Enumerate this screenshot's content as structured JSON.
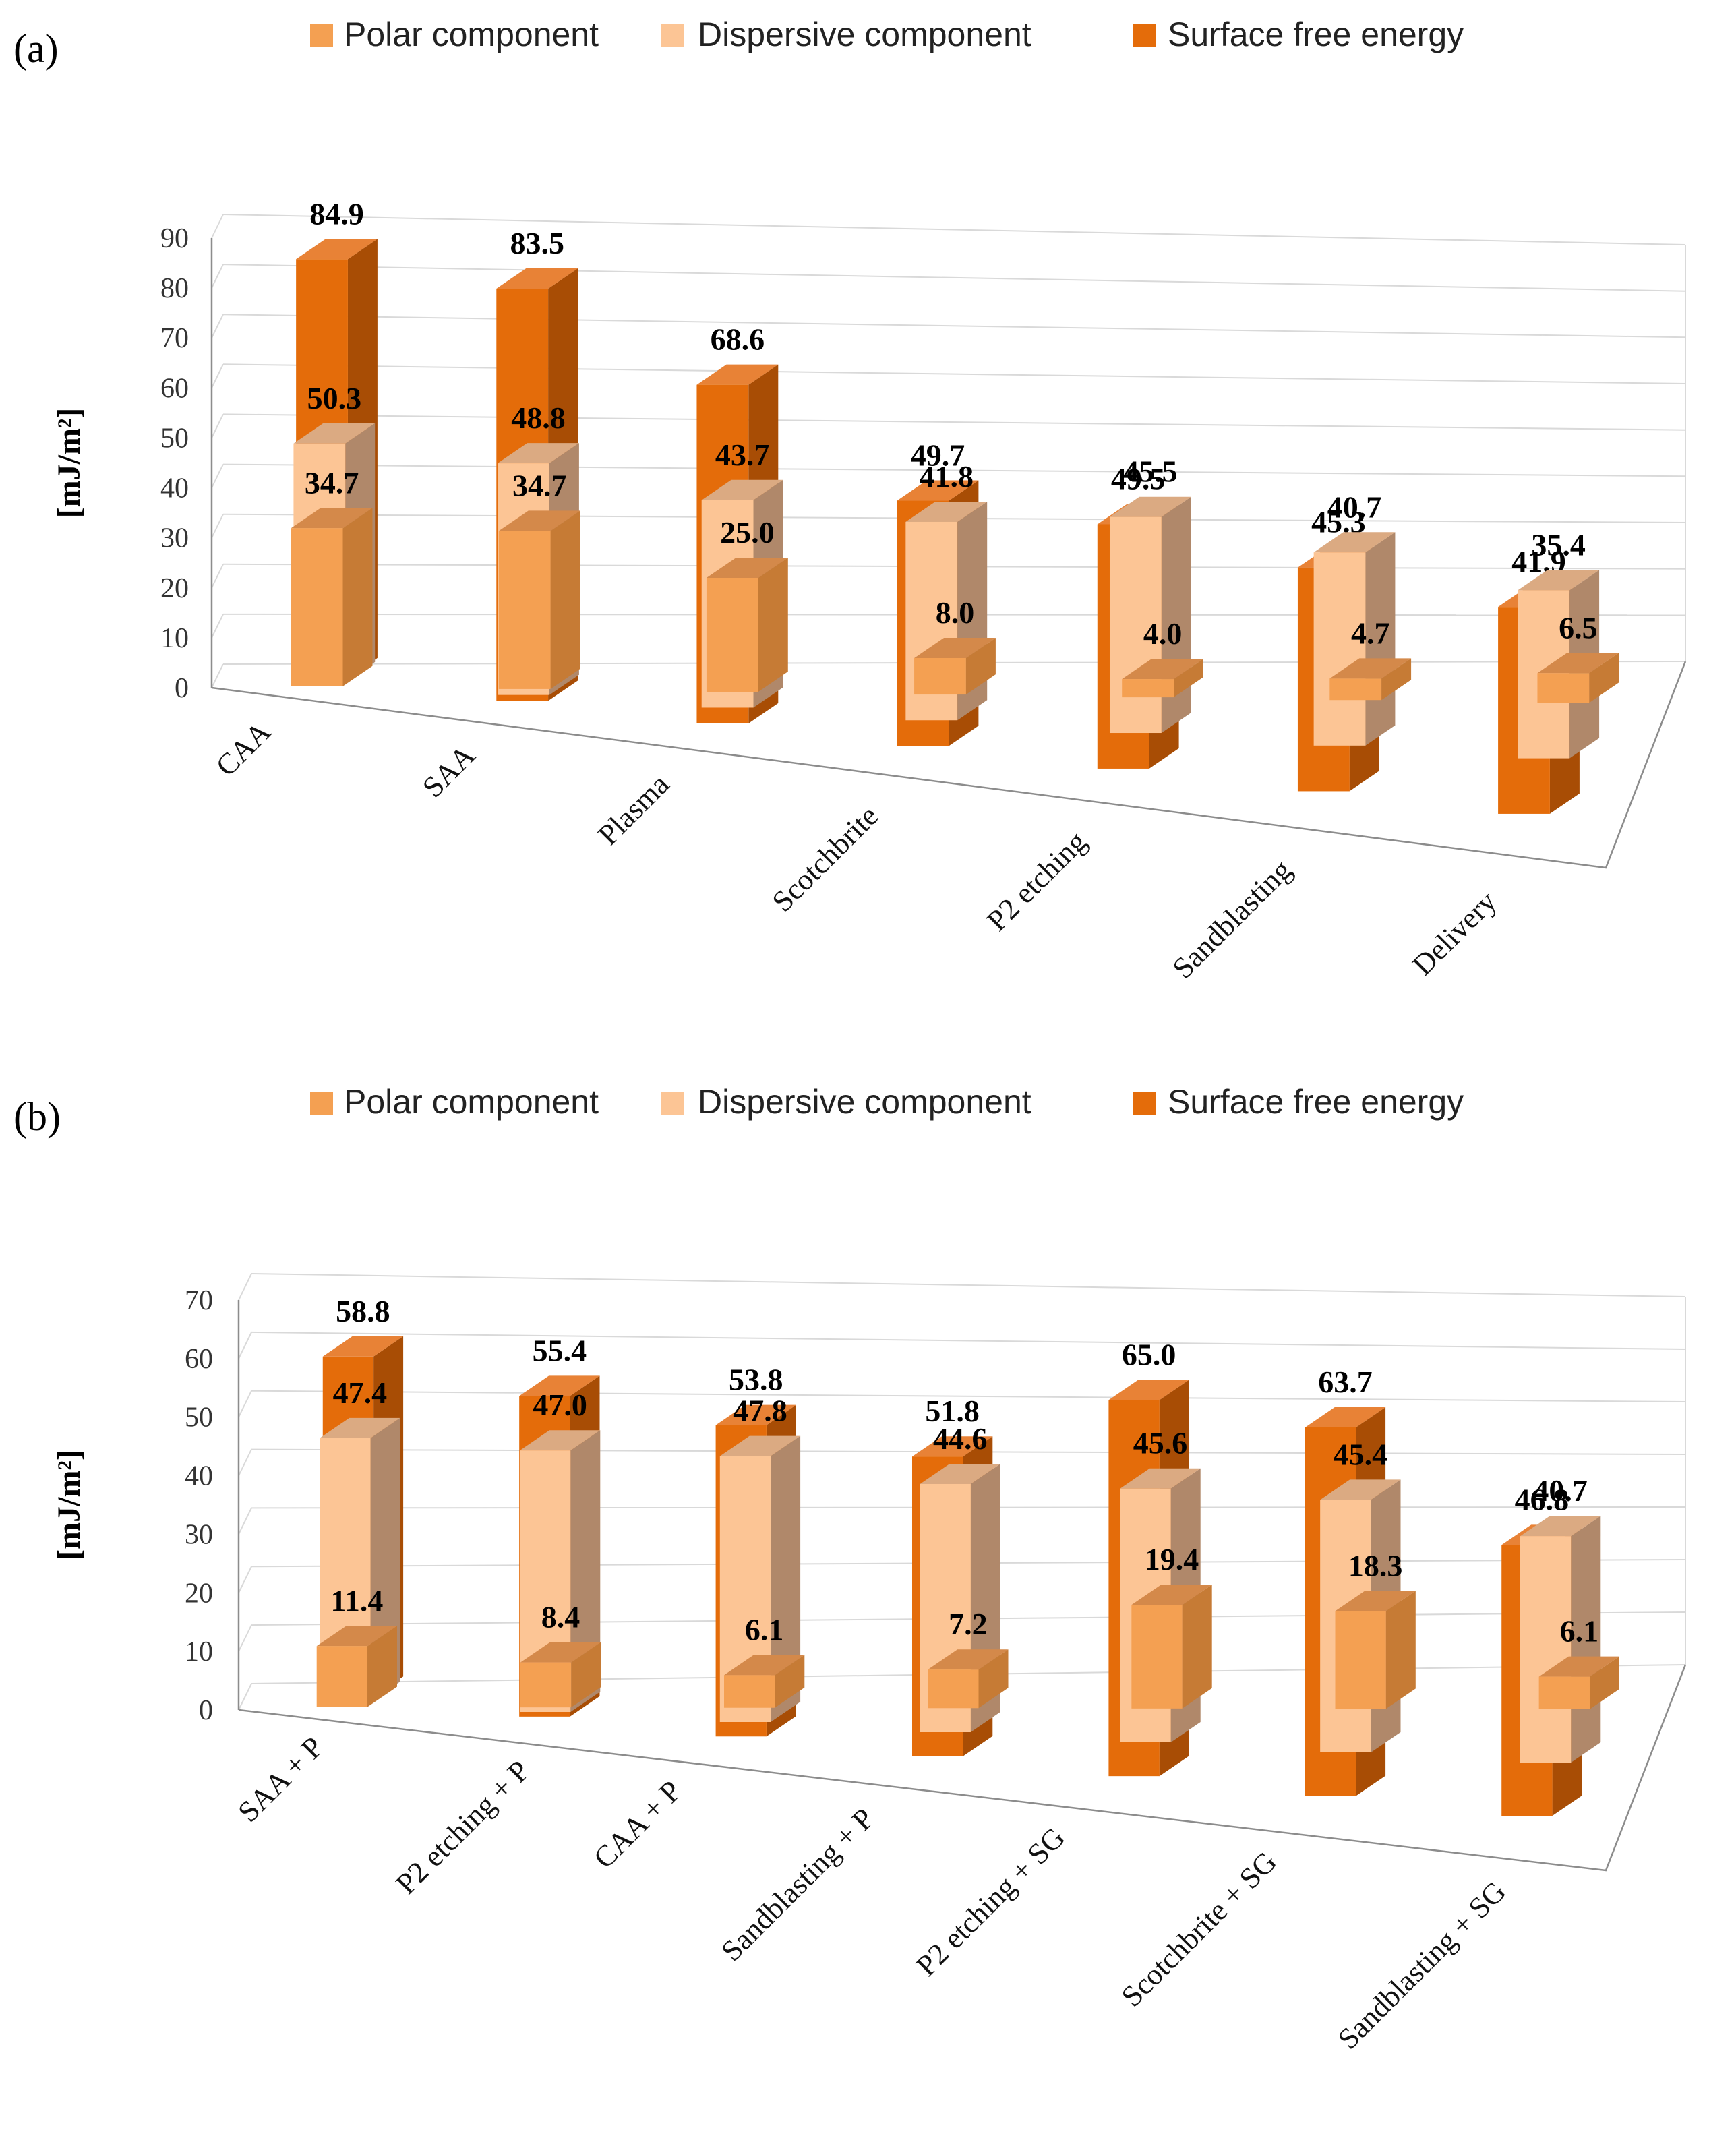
{
  "colors": {
    "polar": {
      "front": "#f4a052",
      "side": "#c67b35",
      "top": "#d4894a"
    },
    "dispersive": {
      "front": "#fcc595",
      "side": "#b0886a",
      "top": "#dbaa82"
    },
    "surface": {
      "front": "#e46c0a",
      "side": "#a84d05",
      "top": "#e88236"
    }
  },
  "chart_data": [
    {
      "type": "bar",
      "panel_label": "(a)",
      "ylabel": "[mJ/m²]",
      "ylim": [
        0,
        90
      ],
      "yticks": [
        "0",
        "10",
        "20",
        "30",
        "40",
        "50",
        "60",
        "70",
        "80",
        "90"
      ],
      "grid": true,
      "legend_position": "top",
      "categories": [
        "CAA",
        "SAA",
        "Plasma",
        "Scotchbrite",
        "P2 etching",
        "Sandblasting",
        "Delivery"
      ],
      "series": [
        {
          "name": "Polar component",
          "key": "polar",
          "values": [
            34.7,
            34.7,
            25.0,
            8.0,
            4.0,
            4.7,
            6.5
          ],
          "labels": [
            "34.7",
            "34.7",
            "25.0",
            "8.0",
            "4.0",
            "4.7",
            "6.5"
          ]
        },
        {
          "name": "Dispersive component",
          "key": "dispersive",
          "values": [
            50.3,
            48.8,
            43.7,
            41.8,
            45.5,
            40.7,
            35.4
          ],
          "labels": [
            "50.3",
            "48.8",
            "43.7",
            "41.8",
            "45.5",
            "40.7",
            "35.4"
          ]
        },
        {
          "name": "Surface free energy",
          "key": "surface",
          "values": [
            84.9,
            83.5,
            68.6,
            49.7,
            49.5,
            45.3,
            41.9
          ],
          "labels": [
            "84.9",
            "83.5",
            "68.6",
            "49.7",
            "49.5",
            "45.3",
            "41.9"
          ]
        }
      ]
    },
    {
      "type": "bar",
      "panel_label": "(b)",
      "ylabel": "[mJ/m²]",
      "ylim": [
        0,
        70
      ],
      "yticks": [
        "0",
        "10",
        "20",
        "30",
        "40",
        "50",
        "60",
        "70"
      ],
      "grid": true,
      "legend_position": "top",
      "categories": [
        "SAA + P",
        "P2 etching + P",
        "CAA + P",
        "Sandblasting + P",
        "P2 etching + SG",
        "Scotchbrite + SG",
        "Sandblasting + SG"
      ],
      "series": [
        {
          "name": "Polar component",
          "key": "polar",
          "values": [
            11.4,
            8.4,
            6.1,
            7.2,
            19.4,
            18.3,
            6.1
          ],
          "labels": [
            "11.4",
            "8.4",
            "6.1",
            "7.2",
            "19.4",
            "18.3",
            "6.1"
          ]
        },
        {
          "name": "Dispersive component",
          "key": "dispersive",
          "values": [
            47.4,
            47.0,
            47.8,
            44.6,
            45.6,
            45.4,
            40.7
          ],
          "labels": [
            "47.4",
            "47.0",
            "47.8",
            "44.6",
            "45.6",
            "45.4",
            "40.7"
          ]
        },
        {
          "name": "Surface free energy",
          "key": "surface",
          "values": [
            58.8,
            55.4,
            53.8,
            51.8,
            65.0,
            63.7,
            46.8
          ],
          "labels": [
            "58.8",
            "55.4",
            "53.8",
            "51.8",
            "65.0",
            "63.7",
            "46.8"
          ]
        }
      ]
    }
  ]
}
